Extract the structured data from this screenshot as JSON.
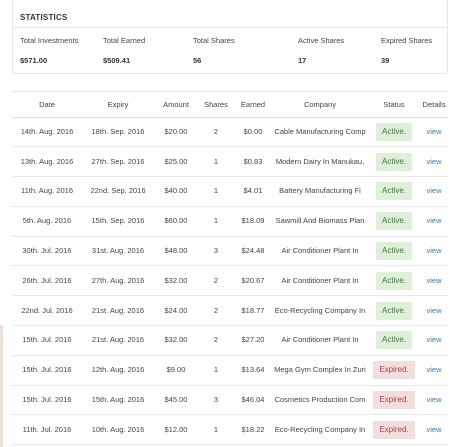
{
  "statistics": {
    "title": "STATISTICS",
    "items": [
      {
        "label": "Total Investments",
        "value": "$571.00"
      },
      {
        "label": "Total Earned",
        "value": "$509.41"
      },
      {
        "label": "Total Shares",
        "value": "56"
      },
      {
        "label": "Active Shares",
        "value": "17"
      },
      {
        "label": "Expired Shares",
        "value": "39"
      }
    ]
  },
  "table": {
    "headers": [
      "Date",
      "Expiry",
      "Amount",
      "Shares",
      "Earned",
      "Company",
      "Status",
      "Details"
    ],
    "rows": [
      {
        "date": "14th. Aug. 2016",
        "expiry": "18th. Sep. 2016",
        "amount": "$20.00",
        "shares": "2",
        "earned": "$0.00",
        "company": "Cable Manufacturing Comp",
        "status": "Active.",
        "details": "view"
      },
      {
        "date": "13th. Aug. 2016",
        "expiry": "27th. Sep. 2016",
        "amount": "$25.00",
        "shares": "1",
        "earned": "$0.83",
        "company": "Modern Dairy In Manukau,",
        "status": "Active.",
        "details": "view"
      },
      {
        "date": "11th. Aug. 2016",
        "expiry": "22nd. Sep. 2016",
        "amount": "$40.00",
        "shares": "1",
        "earned": "$4.01",
        "company": "Battery Manufacturing Fi",
        "status": "Active.",
        "details": "view"
      },
      {
        "date": "5th. Aug. 2016",
        "expiry": "15th. Sep. 2016",
        "amount": "$60.00",
        "shares": "1",
        "earned": "$18.09",
        "company": "Sawmill And Biomass Plan",
        "status": "Active.",
        "details": "view"
      },
      {
        "date": "30th. Jul. 2016",
        "expiry": "31st. Aug. 2016",
        "amount": "$48.00",
        "shares": "3",
        "earned": "$24.48",
        "company": "Air Conditioner Plant In",
        "status": "Active.",
        "details": "view"
      },
      {
        "date": "26th. Jul. 2016",
        "expiry": "27th. Aug. 2016",
        "amount": "$32.00",
        "shares": "2",
        "earned": "$20.67",
        "company": "Air Conditioner Plant In",
        "status": "Active.",
        "details": "view"
      },
      {
        "date": "22nd. Jul. 2016",
        "expiry": "21st. Aug. 2016",
        "amount": "$24.00",
        "shares": "2",
        "earned": "$18.77",
        "company": "Eco-Recycling Company In",
        "status": "Active.",
        "details": "view"
      },
      {
        "date": "15th. Jul. 2016",
        "expiry": "21st. Aug. 2016",
        "amount": "$32.00",
        "shares": "2",
        "earned": "$27.20",
        "company": "Air Conditioner Plant In",
        "status": "Active.",
        "details": "view"
      },
      {
        "date": "15th. Jul. 2016",
        "expiry": "12th. Aug. 2016",
        "amount": "$9.00",
        "shares": "1",
        "earned": "$13.64",
        "company": "Mega Gym Complex In Zuri",
        "status": "Expired.",
        "details": "view"
      },
      {
        "date": "15th. Jul. 2016",
        "expiry": "15th. Aug. 2016",
        "amount": "$45.00",
        "shares": "3",
        "earned": "$46.04",
        "company": "Cosmetics Production Com",
        "status": "Expired.",
        "details": "view"
      },
      {
        "date": "11th. Jul. 2016",
        "expiry": "10th. Aug. 2016",
        "amount": "$12.00",
        "shares": "1",
        "earned": "$18.22",
        "company": "Eco-Recycling Company In",
        "status": "Expired.",
        "details": "view"
      }
    ]
  },
  "colors": {
    "active_bg": "#dff0d8",
    "active_text": "#3c763d",
    "expired_bg": "#f2dede",
    "expired_text": "#a94442",
    "link": "#337ab7"
  }
}
